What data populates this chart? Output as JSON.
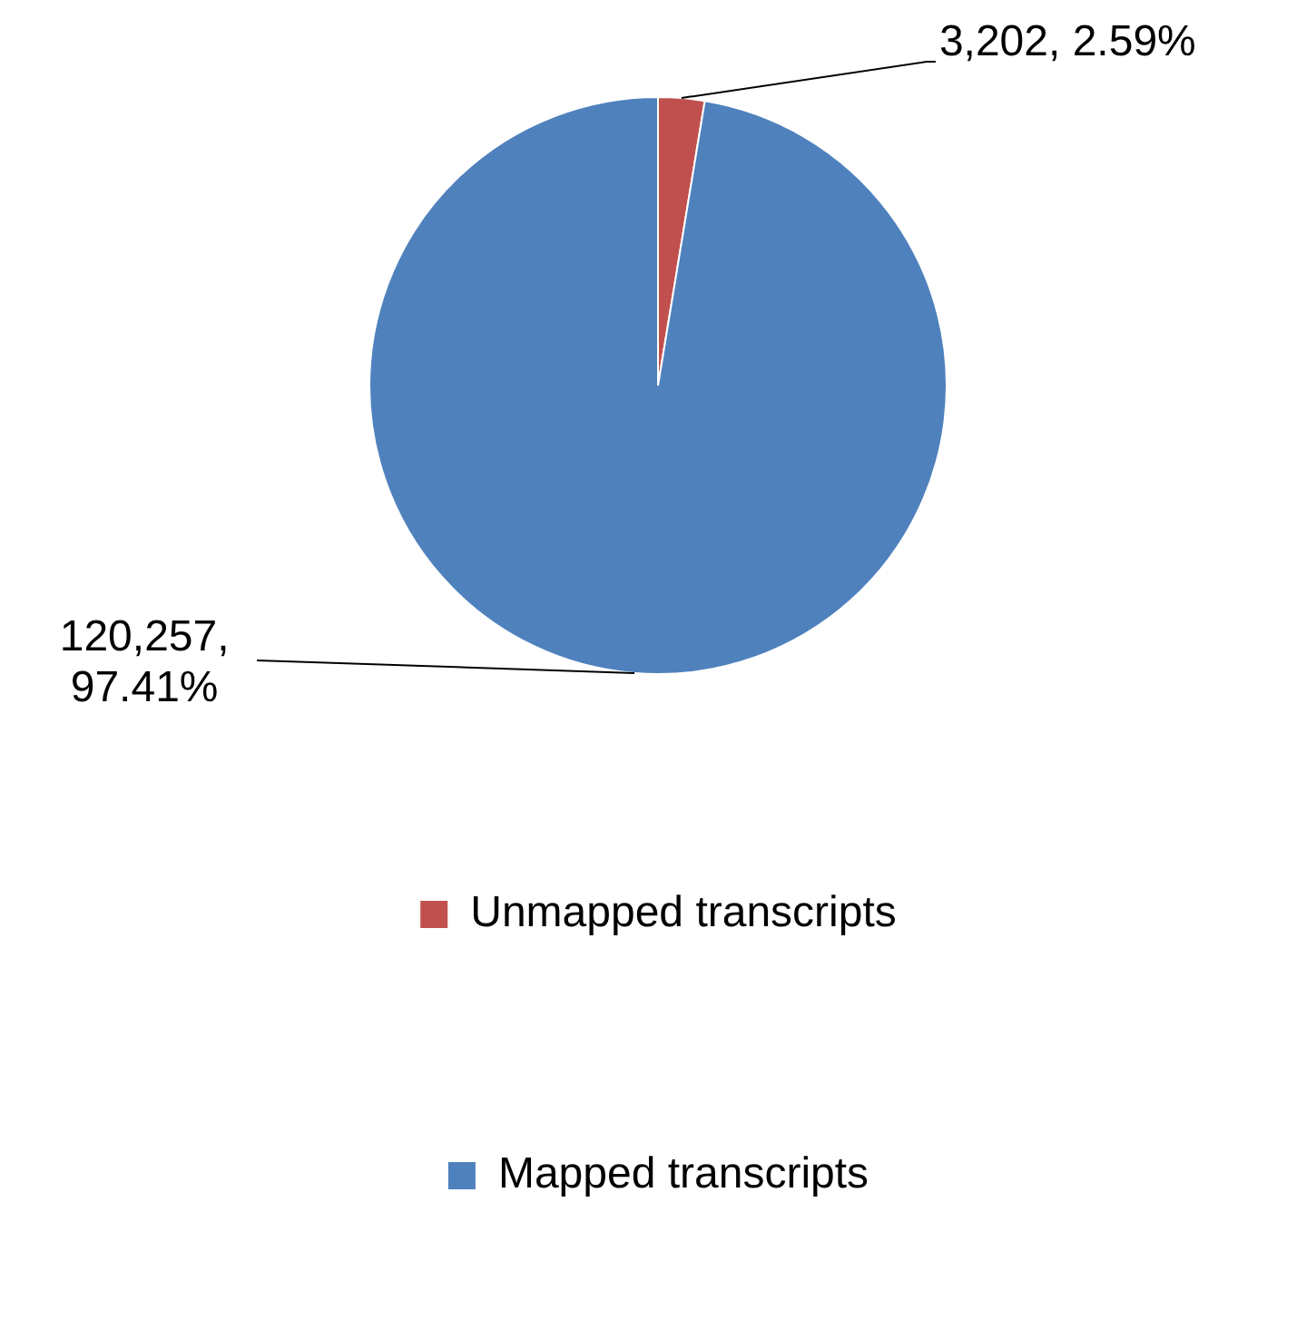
{
  "chart_data": {
    "type": "pie",
    "categories": [
      "Unmapped transcripts",
      "Mapped transcripts"
    ],
    "values": [
      3202,
      120257
    ],
    "colors": [
      "#c0504d",
      "#4f81bd"
    ],
    "value_labels": [
      "3,202, 2.59%",
      "120,257, 97.41%"
    ],
    "legend": "bottom"
  }
}
